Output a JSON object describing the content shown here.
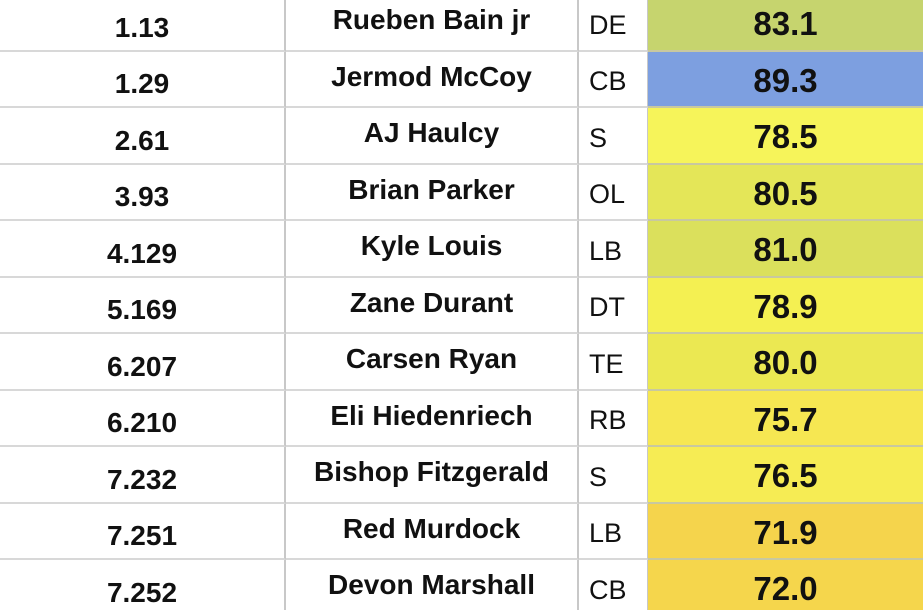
{
  "table": {
    "rows": [
      {
        "pick": "1.13",
        "name": "Rueben Bain jr",
        "position": "DE",
        "score": "83.1",
        "color": "#c6d46e"
      },
      {
        "pick": "1.29",
        "name": "Jermod McCoy",
        "position": "CB",
        "score": "89.3",
        "color": "#7d9fe0"
      },
      {
        "pick": "2.61",
        "name": "AJ Haulcy",
        "position": "S",
        "score": "78.5",
        "color": "#f6f45a"
      },
      {
        "pick": "3.93",
        "name": "Brian Parker",
        "position": "OL",
        "score": "80.5",
        "color": "#e4e658"
      },
      {
        "pick": "4.129",
        "name": "Kyle Louis",
        "position": "LB",
        "score": "81.0",
        "color": "#dbe05c"
      },
      {
        "pick": "5.169",
        "name": "Zane Durant",
        "position": "DT",
        "score": "78.9",
        "color": "#f4f052"
      },
      {
        "pick": "6.207",
        "name": "Carsen Ryan",
        "position": "TE",
        "score": "80.0",
        "color": "#ebe852"
      },
      {
        "pick": "6.210",
        "name": "Eli Hiedenriech",
        "position": "RB",
        "score": "75.7",
        "color": "#f6e752"
      },
      {
        "pick": "7.232",
        "name": "Bishop Fitzgerald",
        "position": "S",
        "score": "76.5",
        "color": "#f6ec54"
      },
      {
        "pick": "7.251",
        "name": "Red Murdock",
        "position": "LB",
        "score": "71.9",
        "color": "#f5d44c"
      },
      {
        "pick": "7.252",
        "name": "Devon Marshall",
        "position": "CB",
        "score": "72.0",
        "color": "#f5d64c"
      }
    ]
  }
}
